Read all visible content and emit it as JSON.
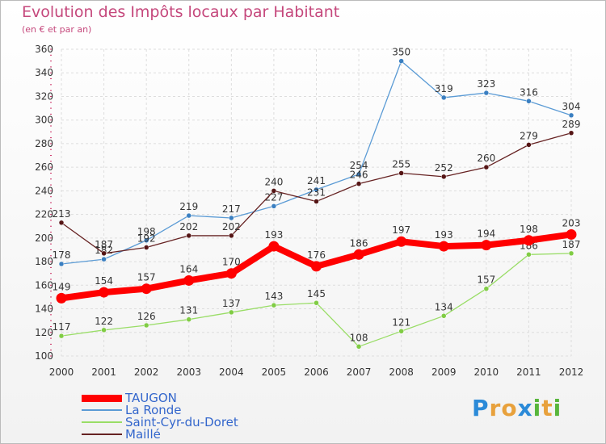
{
  "title": "Evolution des Impôts locaux par Habitant",
  "subtitle": "(en € et par an)",
  "logo_text": "Proxiti",
  "chart_data": {
    "type": "line",
    "title": "Evolution des Impôts locaux par Habitant",
    "subtitle": "(en € et par an)",
    "xlabel": "",
    "ylabel": "",
    "x": [
      "2000",
      "2001",
      "2002",
      "2003",
      "2004",
      "2005",
      "2006",
      "2007",
      "2008",
      "2009",
      "2010",
      "2011",
      "2012"
    ],
    "ylim": [
      100,
      360
    ],
    "yticks": [
      100,
      120,
      140,
      160,
      180,
      200,
      220,
      240,
      260,
      280,
      300,
      320,
      340,
      360
    ],
    "grid": true,
    "legend_position": "bottom-left",
    "series": [
      {
        "name": "TAUGON",
        "color": "#ff0000",
        "emphasis": true,
        "values": [
          149,
          154,
          157,
          164,
          170,
          193,
          176,
          186,
          197,
          193,
          194,
          198,
          203
        ]
      },
      {
        "name": "La Ronde",
        "color": "#5b9bd5",
        "values": [
          178,
          182,
          198,
          219,
          217,
          227,
          241,
          254,
          350,
          319,
          323,
          316,
          304
        ]
      },
      {
        "name": "Saint-Cyr-du-Doret",
        "color": "#99dd66",
        "values": [
          117,
          122,
          126,
          131,
          137,
          143,
          145,
          108,
          121,
          134,
          157,
          186,
          187
        ]
      },
      {
        "name": "Maillé",
        "color": "#662222",
        "values": [
          213,
          187,
          192,
          202,
          202,
          240,
          231,
          246,
          255,
          252,
          260,
          279,
          289
        ]
      }
    ]
  }
}
